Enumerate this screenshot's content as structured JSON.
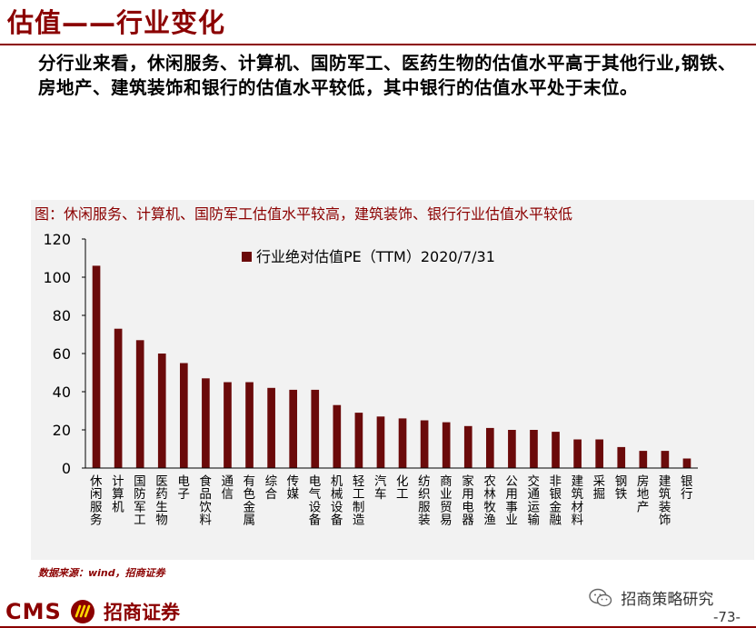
{
  "header": {
    "title": "估值——行业变化"
  },
  "summary": {
    "text": "分行业来看，休闲服务、计算机、国防军工、医药生物的估值水平高于其他行业,钢铁、房地产、建筑装饰和银行的估值水平较低，其中银行的估值水平处于末位。"
  },
  "figure": {
    "caption": "图：休闲服务、计算机、国防军工估值水平较高，建筑装饰、银行行业估值水平较低",
    "source": "数据来源：wind，招商证券"
  },
  "chart_data": {
    "type": "bar",
    "categories": [
      "休闲服务",
      "计算机",
      "国防军工",
      "医药生物",
      "电子",
      "食品饮料",
      "通信",
      "有色金属",
      "综合",
      "传媒",
      "电气设备",
      "机械设备",
      "轻工制造",
      "汽车",
      "化工",
      "纺织服装",
      "商业贸易",
      "家用电器",
      "农林牧渔",
      "公用事业",
      "交通运输",
      "非银金融",
      "建筑材料",
      "采掘",
      "钢铁",
      "房地产",
      "建筑装饰",
      "银行"
    ],
    "series": [
      {
        "name": "行业绝对估值PE（TTM）2020/7/31",
        "values": [
          106,
          73,
          67,
          60,
          55,
          47,
          45,
          45,
          42,
          41,
          41,
          33,
          29,
          27,
          26,
          25,
          24,
          22,
          21,
          20,
          20,
          19,
          15,
          15,
          11,
          9,
          9,
          5
        ],
        "color": "#6b0a0a"
      }
    ],
    "yticks": [
      0,
      20,
      40,
      60,
      80,
      100,
      120
    ],
    "ylim": [
      0,
      120
    ],
    "legend_position": "top-center",
    "grid": false
  },
  "footer": {
    "cms": "CMS",
    "brand": "招商证券",
    "wechat": "招商策略研究",
    "page": "-73-"
  }
}
